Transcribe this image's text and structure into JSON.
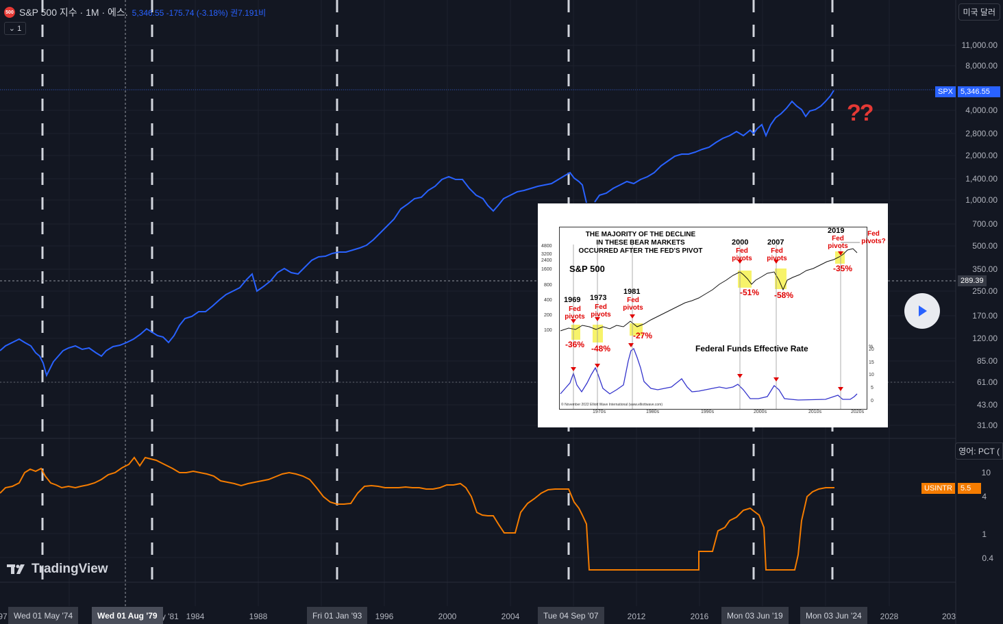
{
  "header": {
    "symbol_badge": "500",
    "title": "S&P 500 지수 · 1M · 에스.",
    "values": "5,346.55  -175.74 (-3.18%)  권7.191비",
    "collapse_label": "⌄ 1",
    "currency_button": "미국 달러",
    "scale_button": "영어: PCT ("
  },
  "price_axis": [
    "11,000.00",
    "8,000.00",
    "4,000.00",
    "2,800.00",
    "2,000.00",
    "1,400.00",
    "1,000.00",
    "700.00",
    "500.00",
    "350.00",
    "250.00",
    "170.00",
    "120.00",
    "85.00",
    "61.00",
    "43.00",
    "31.00"
  ],
  "rate_axis": [
    "10",
    "4",
    "1",
    "0.4"
  ],
  "tags": {
    "spx_name": "SPX",
    "spx_value": "5,346.55",
    "crosshair_value": "289.39",
    "usintr_name": "USINTR",
    "usintr_value": "5.5"
  },
  "time_axis": {
    "labels": [
      "1984",
      "1988",
      "1996",
      "2000",
      "2004",
      "2012",
      "2016",
      "2028",
      "203"
    ],
    "highlights": [
      "Wed 01 May '74",
      "Wed 01 Aug '79",
      "Fri 01 Jan '93",
      "Tue 04 Sep '07",
      "Mon 03 Jun '19",
      "Mon 03 Jun '24"
    ],
    "edge_left": "97",
    "partial_81": "ay '81"
  },
  "annotation": "??",
  "logo_text": "TradingView",
  "colors": {
    "background": "#131722",
    "spx_line": "#2962ff",
    "rate_line": "#f57c00",
    "question": "#e53935"
  },
  "inset": {
    "headline": [
      "THE MAJORITY OF THE DECLINE",
      "IN THESE BEAR MARKETS",
      "OCCURRED AFTER THE FED'S PIVOT"
    ],
    "sp_label": "S&P 500",
    "ffr_label": "Federal Funds Effective Rate",
    "pivots": [
      {
        "year": "1969",
        "text": "Fed pivots",
        "pct": "-36%"
      },
      {
        "year": "1973",
        "text": "Fed pivots",
        "pct": "-48%"
      },
      {
        "year": "1981",
        "text": "Fed pivots",
        "pct": "-27%"
      },
      {
        "year": "2000",
        "text": "Fed pivots",
        "pct": "-51%"
      },
      {
        "year": "2007",
        "text": "Fed pivots",
        "pct": "-58%"
      },
      {
        "year": "2019",
        "text": "Fed pivots",
        "pct": "-35%"
      }
    ],
    "future_pivot": "Fed pivots?",
    "sp_ticks": [
      "4800",
      "3200",
      "2400",
      "1600",
      "800",
      "400",
      "200",
      "100"
    ],
    "rate_ticks": [
      "%",
      "20",
      "15",
      "10",
      "5",
      "0"
    ],
    "decades": [
      "1970s",
      "1980s",
      "1990s",
      "2000s",
      "2010s",
      "2020s"
    ],
    "credit": "© November 2022 Elliott Wave International (www.elliottwave.com)"
  }
}
